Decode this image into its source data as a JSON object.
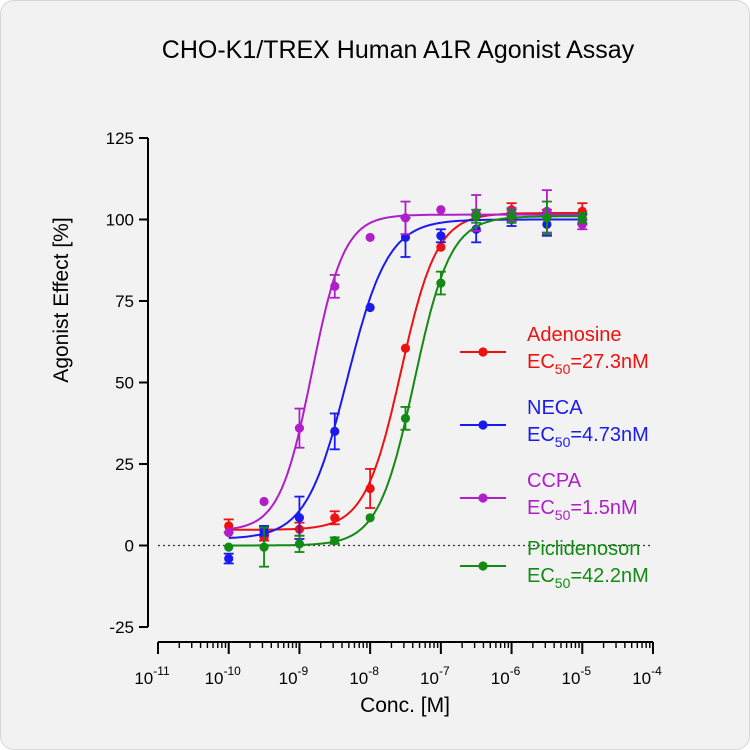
{
  "chart_data": {
    "type": "scatter",
    "title": "CHO-K1/TREX Human  A1R Agonist Assay",
    "xlabel": "Conc. [M]",
    "ylabel": "Agonist Effect [%]",
    "x_scale": "log",
    "xlim": [
      1e-11,
      0.0001
    ],
    "ylim": [
      -25,
      125
    ],
    "y_ticks": [
      "-25",
      "0",
      "25",
      "50",
      "75",
      "100",
      "125"
    ],
    "x_tick_base": "10",
    "x_tick_exponents": [
      "-11",
      "-10",
      "-9",
      "-8",
      "-7",
      "-6",
      "-5",
      "-4"
    ],
    "zero_reference_line": "dotted",
    "legend_position": "center-right",
    "series": [
      {
        "name": "Adenosine",
        "ec50_prefix": "EC",
        "ec50_sub": "50",
        "ec50_value": "=27.3nM",
        "color": "#ee1111",
        "fit": {
          "bottom": 4.8,
          "top": 102,
          "ec50": 2.73e-08,
          "hill": 1.7
        },
        "points": [
          {
            "x": 1e-10,
            "y": 6.0,
            "err": 2.0
          },
          {
            "x": 3.16e-10,
            "y": 2.5,
            "err": 1.0
          },
          {
            "x": 1e-09,
            "y": 5.0,
            "err": 2.0
          },
          {
            "x": 3.16e-09,
            "y": 8.5,
            "err": 2.0
          },
          {
            "x": 1e-08,
            "y": 17.5,
            "err": 6.0
          },
          {
            "x": 3.16e-08,
            "y": 60.5,
            "err": 0
          },
          {
            "x": 1e-07,
            "y": 91.5,
            "err": 0
          },
          {
            "x": 3.16e-07,
            "y": 101.5,
            "err": 0
          },
          {
            "x": 1e-06,
            "y": 103.0,
            "err": 2.0
          },
          {
            "x": 3.16e-06,
            "y": 101.5,
            "err": 1.5
          },
          {
            "x": 1e-05,
            "y": 102.5,
            "err": 2.5
          }
        ]
      },
      {
        "name": "NECA",
        "ec50_prefix": "EC",
        "ec50_sub": "50",
        "ec50_value": "=4.73nM",
        "color": "#1a1aee",
        "fit": {
          "bottom": 2,
          "top": 100,
          "ec50": 4.73e-09,
          "hill": 1.5
        },
        "points": [
          {
            "x": 1e-10,
            "y": -4.0,
            "err": 1.5
          },
          {
            "x": 3.16e-10,
            "y": 4.5,
            "err": 1.5
          },
          {
            "x": 1e-09,
            "y": 8.5,
            "err": 6.5
          },
          {
            "x": 3.16e-09,
            "y": 35.0,
            "err": 5.5
          },
          {
            "x": 1e-08,
            "y": 73.0,
            "err": 0
          },
          {
            "x": 3.16e-08,
            "y": 94.5,
            "err": 6.0
          },
          {
            "x": 1e-07,
            "y": 95.0,
            "err": 2.0
          },
          {
            "x": 3.16e-07,
            "y": 97.0,
            "err": 4.0
          },
          {
            "x": 1e-06,
            "y": 100.0,
            "err": 2.0
          },
          {
            "x": 3.16e-06,
            "y": 98.5,
            "err": 3.5
          },
          {
            "x": 1e-05,
            "y": 100.0,
            "err": 1.5
          }
        ]
      },
      {
        "name": "CCPA",
        "ec50_prefix": "EC",
        "ec50_sub": "50",
        "ec50_value": "=1.5nM",
        "color": "#b01ec8",
        "fit": {
          "bottom": 4.5,
          "top": 101.5,
          "ec50": 1.5e-09,
          "hill": 1.9
        },
        "points": [
          {
            "x": 1e-10,
            "y": 4.0,
            "err": 0
          },
          {
            "x": 3.16e-10,
            "y": 13.5,
            "err": 0
          },
          {
            "x": 1e-09,
            "y": 36.0,
            "err": 6.0
          },
          {
            "x": 3.16e-09,
            "y": 79.5,
            "err": 3.5
          },
          {
            "x": 1e-08,
            "y": 94.5,
            "err": 0
          },
          {
            "x": 3.16e-08,
            "y": 100.5,
            "err": 5.0
          },
          {
            "x": 1e-07,
            "y": 103.0,
            "err": 0
          },
          {
            "x": 3.16e-07,
            "y": 102.0,
            "err": 5.5
          },
          {
            "x": 1e-06,
            "y": 101.5,
            "err": 2.0
          },
          {
            "x": 3.16e-06,
            "y": 102.5,
            "err": 6.5
          },
          {
            "x": 1e-05,
            "y": 98.5,
            "err": 1.5
          }
        ]
      },
      {
        "name": "Piclidenoson",
        "ec50_prefix": "EC",
        "ec50_sub": "50",
        "ec50_value": "=42.2nM",
        "color": "#138a13",
        "fit": {
          "bottom": 0,
          "top": 101,
          "ec50": 4.22e-08,
          "hill": 1.7
        },
        "points": [
          {
            "x": 1e-10,
            "y": -0.5,
            "err": 0
          },
          {
            "x": 3.16e-10,
            "y": -0.5,
            "err": 6.0
          },
          {
            "x": 1e-09,
            "y": 0.5,
            "err": 2.5
          },
          {
            "x": 3.16e-09,
            "y": 1.5,
            "err": 1.0
          },
          {
            "x": 1e-08,
            "y": 8.5,
            "err": 0
          },
          {
            "x": 3.16e-08,
            "y": 39.0,
            "err": 3.5
          },
          {
            "x": 1e-07,
            "y": 80.5,
            "err": 3.5
          },
          {
            "x": 3.16e-07,
            "y": 101.0,
            "err": 2.0
          },
          {
            "x": 1e-06,
            "y": 101.0,
            "err": 2.0
          },
          {
            "x": 3.16e-06,
            "y": 100.5,
            "err": 5.0
          },
          {
            "x": 1e-05,
            "y": 100.5,
            "err": 1.5
          }
        ]
      }
    ]
  }
}
